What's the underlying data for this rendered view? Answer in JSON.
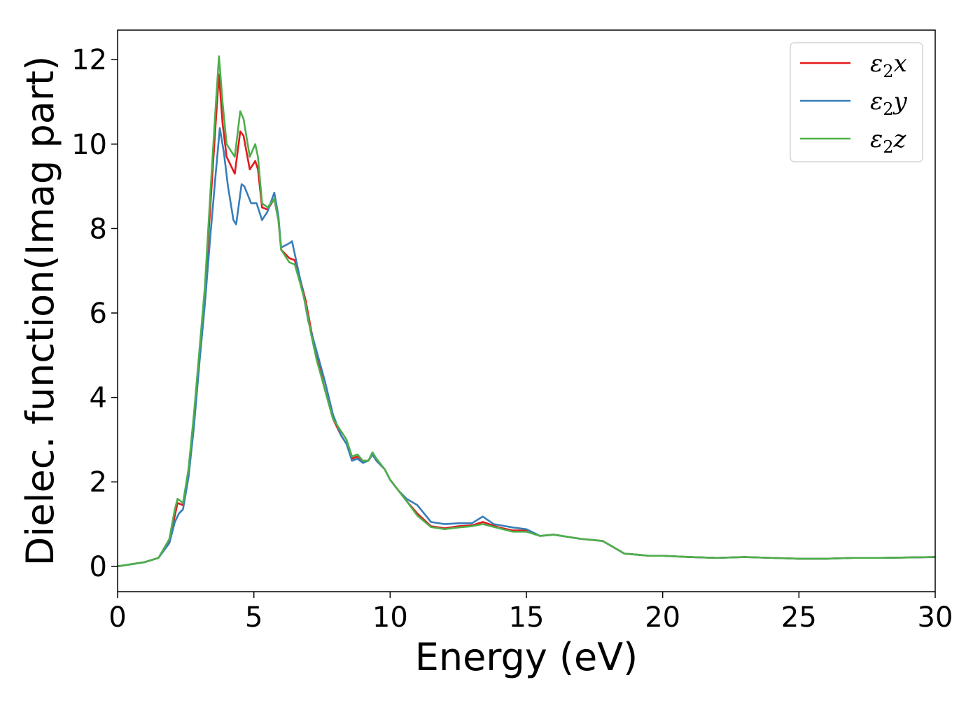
{
  "chart_data": {
    "type": "line",
    "title": "",
    "xlabel": "Energy (eV)",
    "ylabel": "Dielec. function(Imag part)",
    "xlim": [
      0,
      30
    ],
    "ylim": [
      -0.6,
      12.7
    ],
    "xticks": [
      0,
      5,
      10,
      15,
      20,
      25,
      30
    ],
    "yticks": [
      0,
      2,
      4,
      6,
      8,
      10,
      12
    ],
    "grid": false,
    "legend_position": "top-right",
    "series": [
      {
        "name": "ε₂x",
        "legend": {
          "base": "ε",
          "sub": "2",
          "suffix": "x"
        },
        "color": "#e41a1c",
        "points": [
          [
            0,
            0
          ],
          [
            0.5,
            0.05
          ],
          [
            1.0,
            0.1
          ],
          [
            1.5,
            0.2
          ],
          [
            1.9,
            0.6
          ],
          [
            2.1,
            1.2
          ],
          [
            2.2,
            1.5
          ],
          [
            2.4,
            1.45
          ],
          [
            2.6,
            2.2
          ],
          [
            2.8,
            3.5
          ],
          [
            3.0,
            5.0
          ],
          [
            3.2,
            6.5
          ],
          [
            3.4,
            8.5
          ],
          [
            3.6,
            10.5
          ],
          [
            3.72,
            11.65
          ],
          [
            3.85,
            10.5
          ],
          [
            4.0,
            9.7
          ],
          [
            4.3,
            9.3
          ],
          [
            4.5,
            10.3
          ],
          [
            4.62,
            10.2
          ],
          [
            4.85,
            9.4
          ],
          [
            5.05,
            9.6
          ],
          [
            5.15,
            9.4
          ],
          [
            5.3,
            8.5
          ],
          [
            5.5,
            8.45
          ],
          [
            5.75,
            8.7
          ],
          [
            5.9,
            8.2
          ],
          [
            6.0,
            7.5
          ],
          [
            6.3,
            7.3
          ],
          [
            6.5,
            7.25
          ],
          [
            6.7,
            6.8
          ],
          [
            6.9,
            6.3
          ],
          [
            7.1,
            5.6
          ],
          [
            7.3,
            5.0
          ],
          [
            7.6,
            4.2
          ],
          [
            7.9,
            3.5
          ],
          [
            8.2,
            3.1
          ],
          [
            8.4,
            2.9
          ],
          [
            8.6,
            2.55
          ],
          [
            8.8,
            2.6
          ],
          [
            9.0,
            2.5
          ],
          [
            9.2,
            2.5
          ],
          [
            9.35,
            2.65
          ],
          [
            9.5,
            2.5
          ],
          [
            9.8,
            2.3
          ],
          [
            10.0,
            2.05
          ],
          [
            10.3,
            1.8
          ],
          [
            10.6,
            1.55
          ],
          [
            11.0,
            1.25
          ],
          [
            11.5,
            0.95
          ],
          [
            12.0,
            0.9
          ],
          [
            12.5,
            0.95
          ],
          [
            13.0,
            0.97
          ],
          [
            13.4,
            1.05
          ],
          [
            14.0,
            0.92
          ],
          [
            14.5,
            0.85
          ],
          [
            15.0,
            0.85
          ],
          [
            15.5,
            0.72
          ],
          [
            16.0,
            0.75
          ],
          [
            16.5,
            0.7
          ],
          [
            17.0,
            0.65
          ],
          [
            17.5,
            0.62
          ],
          [
            17.8,
            0.6
          ],
          [
            18.2,
            0.45
          ],
          [
            18.6,
            0.3
          ],
          [
            19.0,
            0.28
          ],
          [
            19.5,
            0.25
          ],
          [
            20.0,
            0.25
          ],
          [
            21.0,
            0.22
          ],
          [
            22.0,
            0.2
          ],
          [
            23.0,
            0.22
          ],
          [
            24.0,
            0.2
          ],
          [
            25.0,
            0.18
          ],
          [
            26.0,
            0.18
          ],
          [
            27.0,
            0.2
          ],
          [
            28.0,
            0.2
          ],
          [
            29.0,
            0.21
          ],
          [
            30.0,
            0.22
          ]
        ]
      },
      {
        "name": "ε₂y",
        "legend": {
          "base": "ε",
          "sub": "2",
          "suffix": "y"
        },
        "color": "#377eb8",
        "points": [
          [
            0,
            0
          ],
          [
            0.5,
            0.05
          ],
          [
            1.0,
            0.1
          ],
          [
            1.5,
            0.2
          ],
          [
            1.9,
            0.55
          ],
          [
            2.1,
            1.05
          ],
          [
            2.25,
            1.25
          ],
          [
            2.4,
            1.35
          ],
          [
            2.6,
            2.1
          ],
          [
            2.8,
            3.3
          ],
          [
            3.0,
            4.8
          ],
          [
            3.2,
            6.2
          ],
          [
            3.4,
            7.8
          ],
          [
            3.6,
            9.3
          ],
          [
            3.75,
            10.38
          ],
          [
            3.9,
            9.8
          ],
          [
            4.05,
            9.0
          ],
          [
            4.25,
            8.2
          ],
          [
            4.35,
            8.1
          ],
          [
            4.55,
            9.05
          ],
          [
            4.65,
            9.0
          ],
          [
            4.9,
            8.6
          ],
          [
            5.1,
            8.6
          ],
          [
            5.3,
            8.2
          ],
          [
            5.5,
            8.4
          ],
          [
            5.75,
            8.85
          ],
          [
            5.9,
            8.3
          ],
          [
            6.0,
            7.55
          ],
          [
            6.3,
            7.65
          ],
          [
            6.4,
            7.7
          ],
          [
            6.6,
            7.1
          ],
          [
            6.8,
            6.5
          ],
          [
            7.0,
            5.8
          ],
          [
            7.3,
            5.1
          ],
          [
            7.6,
            4.4
          ],
          [
            7.9,
            3.6
          ],
          [
            8.2,
            3.1
          ],
          [
            8.4,
            2.9
          ],
          [
            8.6,
            2.5
          ],
          [
            8.8,
            2.55
          ],
          [
            9.0,
            2.45
          ],
          [
            9.2,
            2.5
          ],
          [
            9.35,
            2.65
          ],
          [
            9.5,
            2.5
          ],
          [
            9.8,
            2.3
          ],
          [
            10.0,
            2.05
          ],
          [
            10.3,
            1.8
          ],
          [
            10.6,
            1.6
          ],
          [
            11.0,
            1.45
          ],
          [
            11.5,
            1.05
          ],
          [
            12.0,
            1.0
          ],
          [
            12.5,
            1.02
          ],
          [
            13.0,
            1.02
          ],
          [
            13.4,
            1.18
          ],
          [
            13.8,
            1.0
          ],
          [
            14.5,
            0.92
          ],
          [
            15.0,
            0.88
          ],
          [
            15.5,
            0.72
          ],
          [
            16.0,
            0.75
          ],
          [
            16.5,
            0.7
          ],
          [
            17.0,
            0.65
          ],
          [
            17.5,
            0.62
          ],
          [
            17.8,
            0.6
          ],
          [
            18.2,
            0.45
          ],
          [
            18.6,
            0.3
          ],
          [
            19.0,
            0.28
          ],
          [
            19.5,
            0.25
          ],
          [
            20.0,
            0.25
          ],
          [
            21.0,
            0.22
          ],
          [
            22.0,
            0.2
          ],
          [
            23.0,
            0.22
          ],
          [
            24.0,
            0.2
          ],
          [
            25.0,
            0.18
          ],
          [
            26.0,
            0.18
          ],
          [
            27.0,
            0.2
          ],
          [
            28.0,
            0.2
          ],
          [
            29.0,
            0.21
          ],
          [
            30.0,
            0.22
          ]
        ]
      },
      {
        "name": "ε₂z",
        "legend": {
          "base": "ε",
          "sub": "2",
          "suffix": "z"
        },
        "color": "#4daf4a",
        "points": [
          [
            0,
            0
          ],
          [
            0.5,
            0.05
          ],
          [
            1.0,
            0.1
          ],
          [
            1.5,
            0.2
          ],
          [
            1.9,
            0.65
          ],
          [
            2.1,
            1.35
          ],
          [
            2.2,
            1.6
          ],
          [
            2.4,
            1.5
          ],
          [
            2.6,
            2.3
          ],
          [
            2.8,
            3.6
          ],
          [
            3.0,
            5.1
          ],
          [
            3.2,
            6.6
          ],
          [
            3.4,
            8.8
          ],
          [
            3.6,
            10.9
          ],
          [
            3.72,
            12.08
          ],
          [
            3.85,
            11.0
          ],
          [
            4.0,
            10.0
          ],
          [
            4.3,
            9.7
          ],
          [
            4.5,
            10.78
          ],
          [
            4.62,
            10.6
          ],
          [
            4.85,
            9.7
          ],
          [
            5.05,
            10.0
          ],
          [
            5.15,
            9.7
          ],
          [
            5.3,
            8.6
          ],
          [
            5.5,
            8.5
          ],
          [
            5.75,
            8.7
          ],
          [
            5.9,
            8.2
          ],
          [
            6.0,
            7.5
          ],
          [
            6.3,
            7.2
          ],
          [
            6.5,
            7.15
          ],
          [
            6.7,
            6.7
          ],
          [
            6.9,
            6.2
          ],
          [
            7.1,
            5.5
          ],
          [
            7.3,
            4.9
          ],
          [
            7.6,
            4.2
          ],
          [
            7.9,
            3.5
          ],
          [
            8.2,
            3.2
          ],
          [
            8.4,
            3.0
          ],
          [
            8.6,
            2.6
          ],
          [
            8.8,
            2.65
          ],
          [
            9.0,
            2.5
          ],
          [
            9.2,
            2.5
          ],
          [
            9.35,
            2.7
          ],
          [
            9.5,
            2.55
          ],
          [
            9.8,
            2.3
          ],
          [
            10.0,
            2.05
          ],
          [
            10.3,
            1.8
          ],
          [
            10.6,
            1.55
          ],
          [
            11.0,
            1.2
          ],
          [
            11.5,
            0.93
          ],
          [
            12.0,
            0.88
          ],
          [
            12.5,
            0.92
          ],
          [
            13.0,
            0.95
          ],
          [
            13.4,
            1.0
          ],
          [
            14.0,
            0.9
          ],
          [
            14.5,
            0.82
          ],
          [
            15.0,
            0.82
          ],
          [
            15.5,
            0.72
          ],
          [
            16.0,
            0.75
          ],
          [
            16.5,
            0.7
          ],
          [
            17.0,
            0.65
          ],
          [
            17.5,
            0.62
          ],
          [
            17.8,
            0.6
          ],
          [
            18.2,
            0.45
          ],
          [
            18.6,
            0.3
          ],
          [
            19.0,
            0.28
          ],
          [
            19.5,
            0.25
          ],
          [
            20.0,
            0.25
          ],
          [
            21.0,
            0.22
          ],
          [
            22.0,
            0.2
          ],
          [
            23.0,
            0.22
          ],
          [
            24.0,
            0.2
          ],
          [
            25.0,
            0.18
          ],
          [
            26.0,
            0.18
          ],
          [
            27.0,
            0.2
          ],
          [
            28.0,
            0.2
          ],
          [
            29.0,
            0.21
          ],
          [
            30.0,
            0.22
          ]
        ]
      }
    ]
  }
}
